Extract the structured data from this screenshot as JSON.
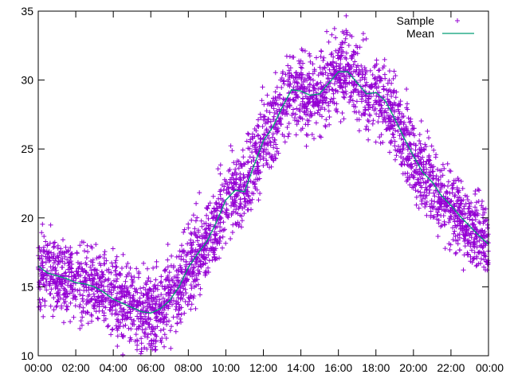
{
  "chart_data": {
    "type": "scatter",
    "title": "",
    "xlabel": "",
    "ylabel": "",
    "x_ticks": [
      "00:00",
      "02:00",
      "04:00",
      "06:00",
      "08:00",
      "10:00",
      "12:00",
      "14:00",
      "16:00",
      "18:00",
      "20:00",
      "22:00",
      "00:00"
    ],
    "xlim_hours": [
      0,
      24
    ],
    "y_ticks": [
      10,
      15,
      20,
      25,
      30,
      35
    ],
    "ylim": [
      10,
      35
    ],
    "grid": false,
    "legend_position": "top-right",
    "series": [
      {
        "name": "Sample",
        "kind": "points",
        "marker": "+",
        "color": "#9400d3",
        "spread": 2.6
      },
      {
        "name": "Mean",
        "kind": "line",
        "color": "#009e73",
        "x_hours": [
          0,
          0.5,
          1,
          1.5,
          2,
          2.5,
          3,
          3.5,
          4,
          4.5,
          5,
          5.5,
          6,
          6.5,
          7,
          7.5,
          8,
          8.5,
          9,
          9.5,
          10,
          10.5,
          11,
          11.5,
          12,
          12.5,
          13,
          13.5,
          14,
          14.5,
          15,
          15.5,
          16,
          16.5,
          17,
          17.5,
          18,
          18.5,
          19,
          19.5,
          20,
          20.5,
          21,
          21.5,
          22,
          22.5,
          23,
          23.5,
          24
        ],
        "values": [
          16.5,
          16.0,
          15.8,
          15.6,
          15.3,
          15.2,
          15.0,
          14.6,
          14.1,
          13.8,
          13.5,
          13.2,
          13.1,
          13.4,
          14.0,
          15.0,
          16.4,
          17.4,
          18.3,
          19.7,
          21.3,
          22.0,
          21.9,
          23.8,
          25.6,
          26.6,
          28.0,
          29.3,
          29.2,
          28.9,
          29.0,
          29.8,
          30.6,
          30.6,
          29.8,
          29.0,
          29.1,
          28.5,
          27.2,
          25.8,
          24.5,
          23.3,
          22.6,
          21.6,
          20.9,
          20.1,
          19.4,
          18.7,
          18.1
        ]
      }
    ]
  }
}
